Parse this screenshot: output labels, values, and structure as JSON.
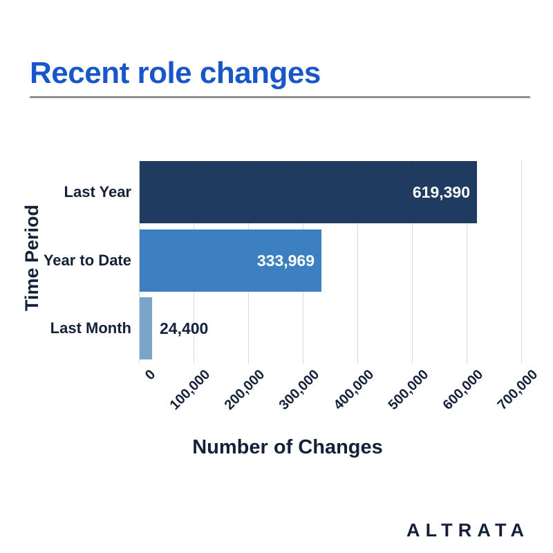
{
  "page": {
    "title": "Recent role changes",
    "brand": "ALTRATA"
  },
  "colors": {
    "title_blue": "#1757C9",
    "navy_text": "#142139",
    "divider_gray": "#919191",
    "gridline_gray": "#D8D8D8",
    "bar_dark_navy": "#1F3B60",
    "bar_medium_blue": "#3D80C2",
    "bar_light_blue": "#7BA4CB",
    "value_label_inside": "#FFFFFF"
  },
  "chart_data": {
    "type": "bar",
    "orientation": "horizontal",
    "title": "Recent role changes",
    "xlabel": "Number of Changes",
    "ylabel": "Time Period",
    "categories": [
      "Last Year",
      "Year to Date",
      "Last Month"
    ],
    "values": [
      619390,
      333969,
      24400
    ],
    "value_labels": [
      "619,390",
      "333,969",
      "24,400"
    ],
    "bar_colors": [
      "#1F3B60",
      "#3D80C2",
      "#7BA4CB"
    ],
    "xlim": [
      0,
      700000
    ],
    "xticks": [
      0,
      100000,
      200000,
      300000,
      400000,
      500000,
      600000,
      700000
    ],
    "xtick_labels": [
      "0",
      "100,000",
      "200,000",
      "300,000",
      "400,000",
      "500,000",
      "600,000",
      "700,000"
    ],
    "grid": true,
    "legend": "none",
    "tick_rotation": 45
  }
}
